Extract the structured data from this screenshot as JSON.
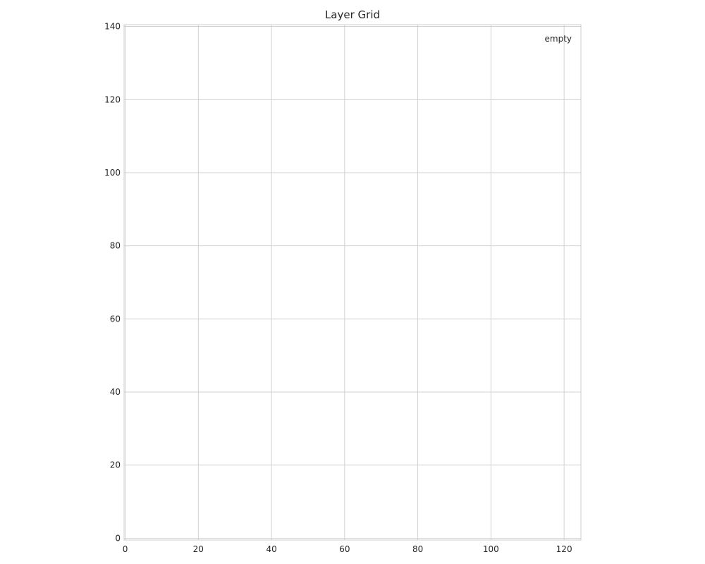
{
  "chart_data": {
    "type": "scatter",
    "title": "Layer Grid",
    "xlabel": "",
    "ylabel": "",
    "xlim": [
      -0.3,
      124.6
    ],
    "ylim": [
      -0.5,
      140.5
    ],
    "xticks": [
      0,
      20,
      40,
      60,
      80,
      100,
      120
    ],
    "yticks": [
      0,
      20,
      40,
      60,
      80,
      100,
      120,
      140
    ],
    "grid": true,
    "legend": {
      "position": "upper right",
      "entries": [
        "empty"
      ]
    },
    "series": []
  }
}
